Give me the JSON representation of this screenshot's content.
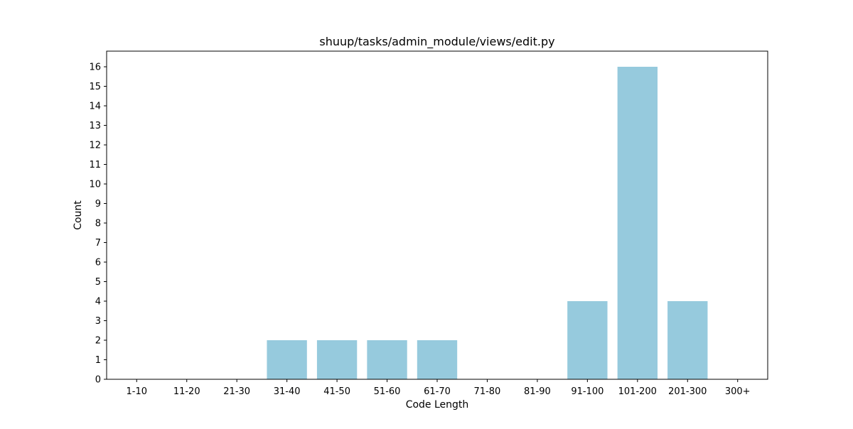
{
  "chart_data": {
    "type": "bar",
    "title": "shuup/tasks/admin_module/views/edit.py",
    "xlabel": "Code Length",
    "ylabel": "Count",
    "categories": [
      "1-10",
      "11-20",
      "21-30",
      "31-40",
      "41-50",
      "51-60",
      "61-70",
      "71-80",
      "81-90",
      "91-100",
      "101-200",
      "201-300",
      "300+"
    ],
    "values": [
      0,
      0,
      0,
      2,
      2,
      2,
      2,
      0,
      0,
      4,
      16,
      4,
      0
    ],
    "ylim": [
      0,
      16.8
    ],
    "yticks": [
      0,
      1,
      2,
      3,
      4,
      5,
      6,
      7,
      8,
      9,
      10,
      11,
      12,
      13,
      14,
      15,
      16
    ],
    "bar_color": "#96cadd",
    "grid": false,
    "legend": "none"
  }
}
